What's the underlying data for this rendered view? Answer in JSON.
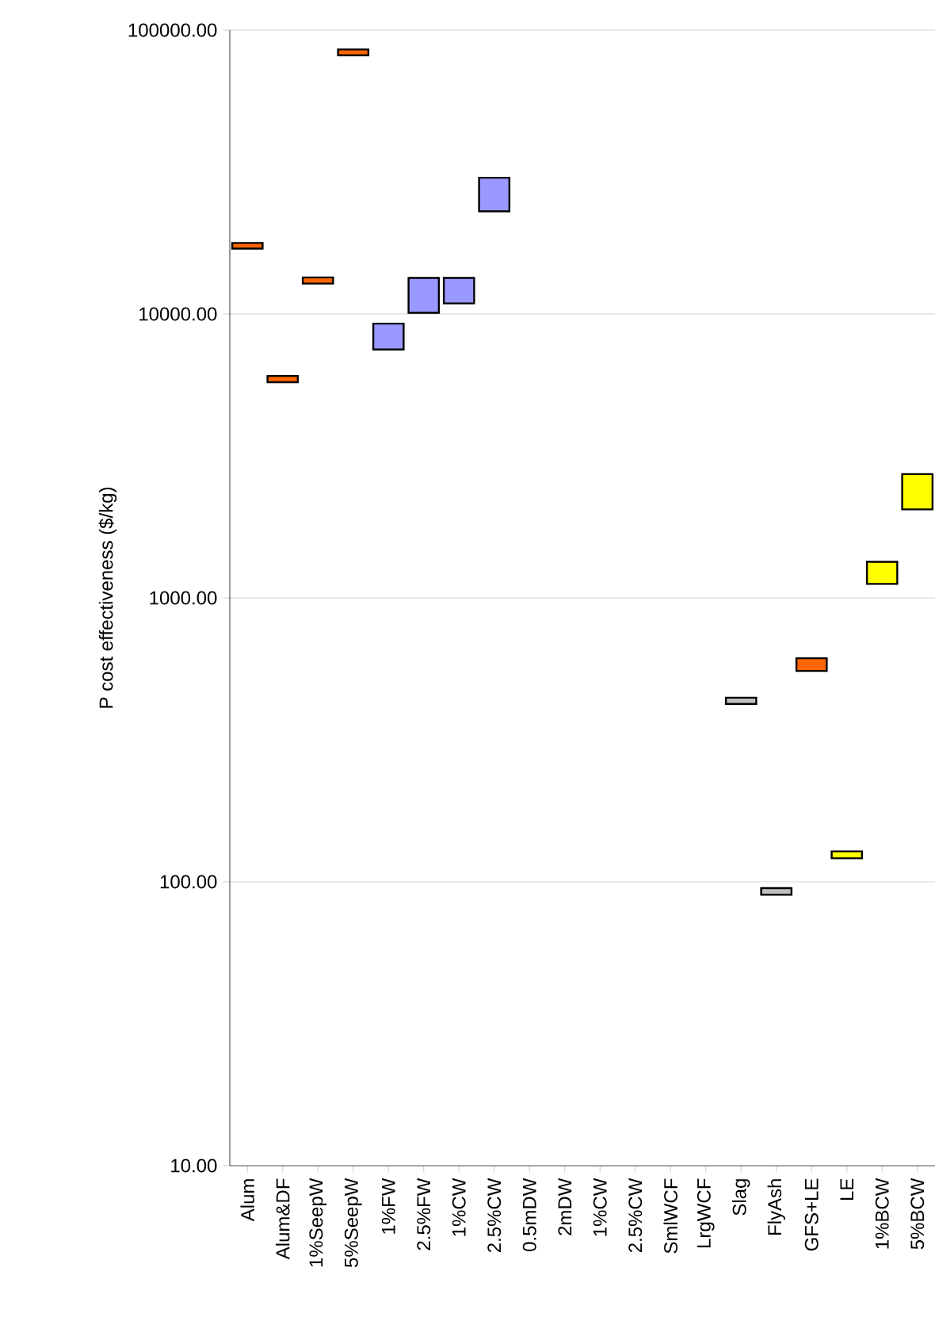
{
  "chart_data": {
    "type": "bar",
    "ylabel": "P cost effectiveness ($/kg)",
    "categories": [
      "Alum",
      "Alum&DF",
      "1%SeepW",
      "5%SeepW",
      "1%FW",
      "2.5%FW",
      "1%CW",
      "2.5%CW",
      "0.5mDW",
      "2mDW",
      "1%CW",
      "2.5%CW",
      "SmlWCF",
      "LrgWCF",
      "Slag",
      "FlyAsh",
      "GFS+LE",
      "LE",
      "1%BCW",
      "5%BCW"
    ],
    "base": [
      17000,
      5750,
      12800,
      81500,
      7500,
      10100,
      10900,
      23000,
      null,
      null,
      null,
      null,
      null,
      null,
      423,
      90,
      553,
      121,
      1120,
      2050
    ],
    "values": [
      800,
      300,
      650,
      4000,
      1750,
      3300,
      2500,
      7200,
      null,
      null,
      null,
      null,
      null,
      null,
      22,
      5,
      60,
      7,
      220,
      680
    ],
    "colors": [
      "#ff6600",
      "#ff6600",
      "#ff6600",
      "#ff6600",
      "#9999ff",
      "#9999ff",
      "#9999ff",
      "#9999ff",
      null,
      null,
      null,
      null,
      null,
      null,
      "#c0c0c0",
      "#c0c0c0",
      "#ff6600",
      "#ffff00",
      "#ffff00",
      "#ffff00"
    ],
    "log": true,
    "ylim": [
      10,
      100000
    ],
    "yticks": [
      {
        "value": 10,
        "label": "10.00"
      },
      {
        "value": 100,
        "label": "100.00"
      },
      {
        "value": 1000,
        "label": "1000.00"
      },
      {
        "value": 10000,
        "label": "10000.00"
      },
      {
        "value": 100000,
        "label": "100000.00"
      }
    ],
    "grid": "y"
  }
}
